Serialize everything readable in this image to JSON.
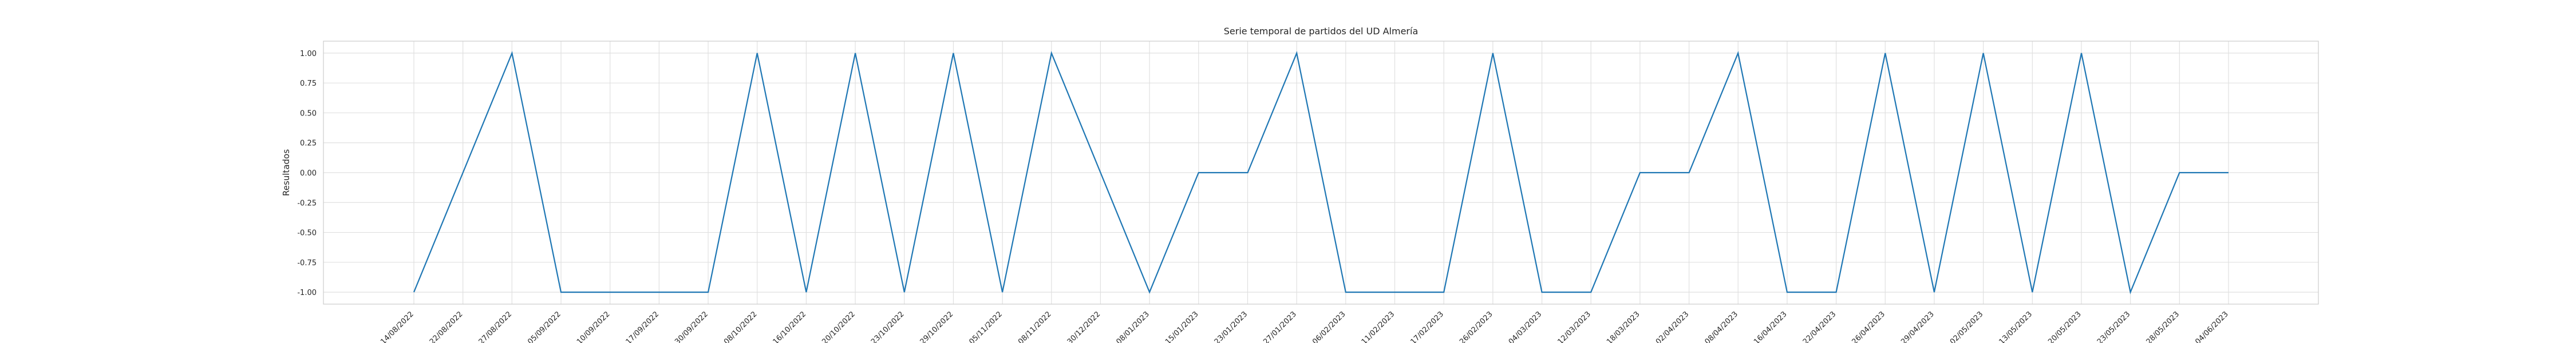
{
  "chart_data": {
    "type": "line",
    "title": "Serie temporal de partidos del UD Almería",
    "xlabel": "",
    "ylabel": "Resultados",
    "ylim": [
      -1.1,
      1.1
    ],
    "yticks": [
      "1.00",
      "0.75",
      "0.50",
      "0.25",
      "0.00",
      "-0.25",
      "-0.50",
      "-0.75",
      "-1.00"
    ],
    "ytick_values": [
      1.0,
      0.75,
      0.5,
      0.25,
      0.0,
      -0.25,
      -0.5,
      -0.75,
      -1.0
    ],
    "grid": true,
    "line_color": "#1f77b4",
    "x": [
      "14/08/2022",
      "22/08/2022",
      "27/08/2022",
      "05/09/2022",
      "10/09/2022",
      "17/09/2022",
      "30/09/2022",
      "08/10/2022",
      "16/10/2022",
      "20/10/2022",
      "23/10/2022",
      "29/10/2022",
      "05/11/2022",
      "08/11/2022",
      "30/12/2022",
      "08/01/2023",
      "15/01/2023",
      "23/01/2023",
      "27/01/2023",
      "06/02/2023",
      "11/02/2023",
      "17/02/2023",
      "26/02/2023",
      "04/03/2023",
      "12/03/2023",
      "18/03/2023",
      "02/04/2023",
      "08/04/2023",
      "16/04/2023",
      "22/04/2023",
      "26/04/2023",
      "29/04/2023",
      "02/05/2023",
      "13/05/2023",
      "20/05/2023",
      "23/05/2023",
      "28/05/2023",
      "04/06/2023"
    ],
    "values": [
      -1,
      0,
      1,
      -1,
      -1,
      -1,
      -1,
      1,
      -1,
      1,
      -1,
      1,
      -1,
      1,
      0,
      -1,
      0,
      0,
      1,
      -1,
      -1,
      -1,
      1,
      -1,
      -1,
      0,
      0,
      1,
      -1,
      -1,
      1,
      -1,
      1,
      -1,
      1,
      -1,
      0,
      0
    ]
  }
}
